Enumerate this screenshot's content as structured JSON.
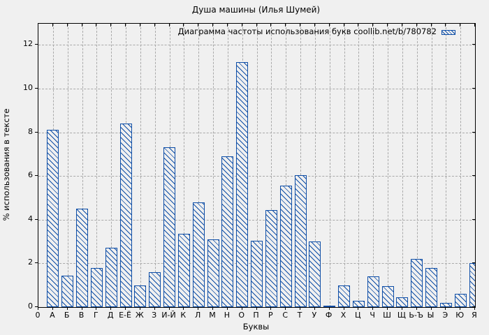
{
  "chart_data": {
    "type": "bar",
    "title": "Душа машины (Илья Шумей)",
    "legend": "Диаграмма частоты использования букв coollib.net/b/780782",
    "legend_position": "top-right-inside",
    "xlabel": "Буквы",
    "ylabel": "% использования в тексте",
    "x_first_tick_label": "0",
    "categories": [
      "А",
      "Б",
      "В",
      "Г",
      "Д",
      "Е-Ё",
      "Ж",
      "З",
      "И-Й",
      "К",
      "Л",
      "М",
      "Н",
      "О",
      "П",
      "Р",
      "С",
      "Т",
      "У",
      "Ф",
      "Х",
      "Ц",
      "Ч",
      "Ш",
      "Щ",
      "Ь-Ъ",
      "Ы",
      "Э",
      "Ю",
      "Я"
    ],
    "values": [
      8.1,
      1.45,
      4.5,
      1.8,
      2.7,
      8.4,
      1.0,
      1.6,
      7.3,
      3.35,
      4.8,
      3.1,
      6.9,
      11.2,
      3.05,
      4.45,
      5.55,
      6.05,
      3.0,
      0.07,
      1.0,
      0.3,
      1.4,
      0.95,
      0.45,
      2.2,
      1.8,
      0.2,
      0.6,
      2.0
    ],
    "y_ticks": [
      0,
      2,
      4,
      6,
      8,
      10,
      12
    ],
    "ylim": [
      0,
      12.97
    ],
    "grid": true,
    "colors": {
      "bar_edge": "#0d4da6",
      "bar_hatch": "#0d4da6",
      "bar_fill": "#f0f0f0",
      "grid": "#a9a9a9",
      "axis": "#000000",
      "background": "#f0f0f0"
    }
  }
}
